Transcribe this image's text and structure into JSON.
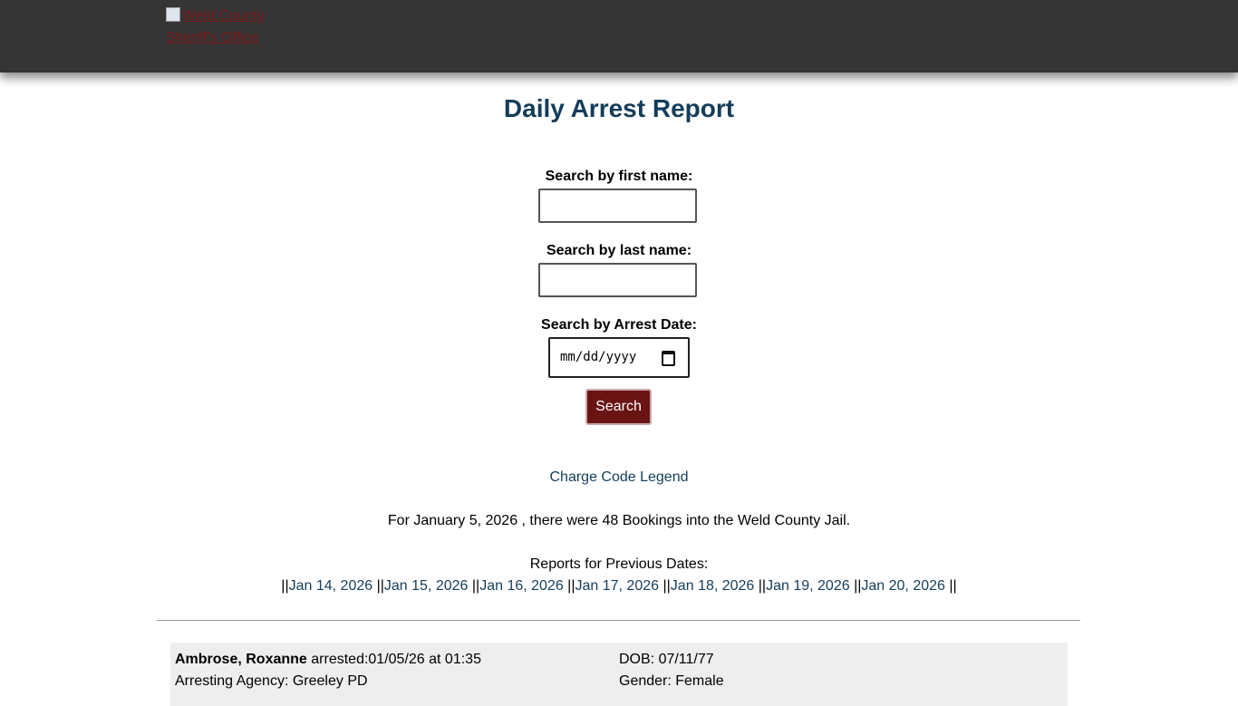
{
  "header": {
    "logo_alt": "Weld County Sheriff's Office"
  },
  "page_title": "Daily Arrest Report",
  "search": {
    "first_label": "Search by first name:",
    "first_value": "",
    "last_label": "Search by last name:",
    "last_value": "",
    "date_label": "Search by Arrest Date:",
    "date_placeholder": "mm/dd/yyyy",
    "button": "Search"
  },
  "legend_link": "Charge Code Legend",
  "summary": "For January 5, 2026 , there were 48 Bookings into the Weld County Jail.",
  "previous": {
    "label": "Reports for Previous Dates:",
    "dates": [
      "Jan 14, 2026",
      "Jan 15, 2026",
      "Jan 16, 2026",
      "Jan 17, 2026",
      "Jan 18, 2026",
      "Jan 19, 2026",
      "Jan 20, 2026"
    ]
  },
  "records": [
    {
      "name": "Ambrose, Roxanne",
      "arrested": "arrested:01/05/26 at 01:35",
      "agency": "Arresting Agency: Greeley PD",
      "dob": "DOB: 07/11/77",
      "gender": "Gender: Female"
    }
  ],
  "colors": {
    "header_bg": "#353535",
    "title": "#143d5a",
    "button_bg": "#6b1414"
  }
}
